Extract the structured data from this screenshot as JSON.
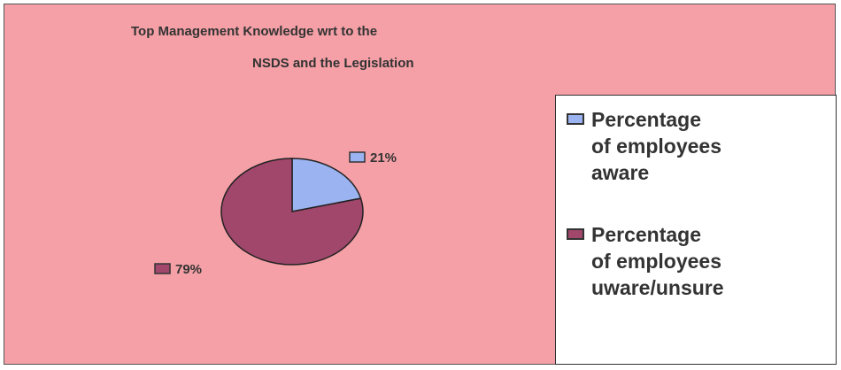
{
  "chart_data": {
    "type": "pie",
    "title_lines": [
      "Top Management Knowledge wrt to the",
      "NSDS and the Legislation"
    ],
    "slices": [
      {
        "label": "Percentage\nof employees\naware",
        "value": 21,
        "data_label": "21%",
        "color": "#9bb3f0"
      },
      {
        "label": "Percentage\nof employees\nuware/unsure",
        "value": 79,
        "data_label": "79%",
        "color": "#a0476b"
      }
    ],
    "legend_position": "right",
    "plot_background": "#f4a0a6",
    "legend_background": "#ffffff"
  }
}
